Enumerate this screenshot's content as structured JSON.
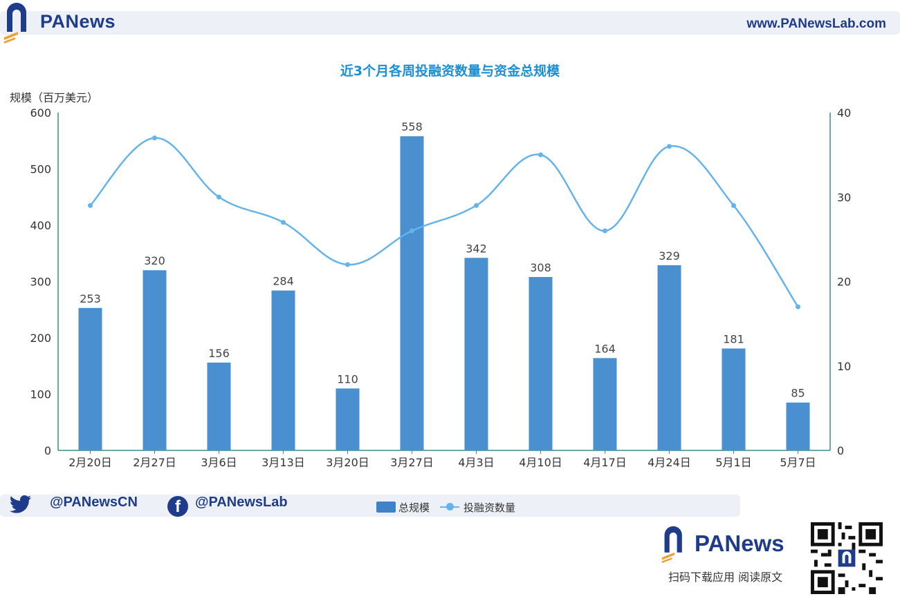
{
  "header": {
    "brand": "PANews",
    "site": "www.PANewsLab.com"
  },
  "colors": {
    "bar": "#4a8fd0",
    "line": "#64b3ea",
    "axis": "#3d8a8a",
    "title": "#1a8fd6",
    "brand": "#1f3c8a"
  },
  "chart_data": {
    "type": "bar",
    "title": "近3个月各周投融资数量与资金总规模",
    "ylabel": "规模（百万美元）",
    "categories": [
      "2月20日",
      "2月27日",
      "3月6日",
      "3月13日",
      "3月20日",
      "3月27日",
      "4月3日",
      "4月10日",
      "4月17日",
      "4月24日",
      "5月1日",
      "5月7日"
    ],
    "ylim": [
      0,
      600
    ],
    "yticks": [
      "0",
      "100",
      "200",
      "300",
      "400",
      "500",
      "600"
    ],
    "y2lim": [
      0,
      40
    ],
    "y2ticks": [
      "0",
      "10",
      "20",
      "30",
      "40"
    ],
    "series": [
      {
        "name": "总规模",
        "type": "bar",
        "axis": "left",
        "values": [
          253,
          320,
          156,
          284,
          110,
          558,
          342,
          308,
          164,
          329,
          181,
          85
        ]
      },
      {
        "name": "投融资数量",
        "type": "line",
        "axis": "right",
        "smooth": true,
        "values": [
          29,
          37,
          30,
          27,
          22,
          26,
          29,
          35,
          26,
          36,
          29,
          17
        ]
      }
    ],
    "legend_position": "bottom-center",
    "grid": false
  },
  "footer": {
    "twitter": "@PANewsCN",
    "facebook": "@PANewsLab",
    "brand": "PANews",
    "scan_text": "扫码下载应用  阅读原文"
  }
}
